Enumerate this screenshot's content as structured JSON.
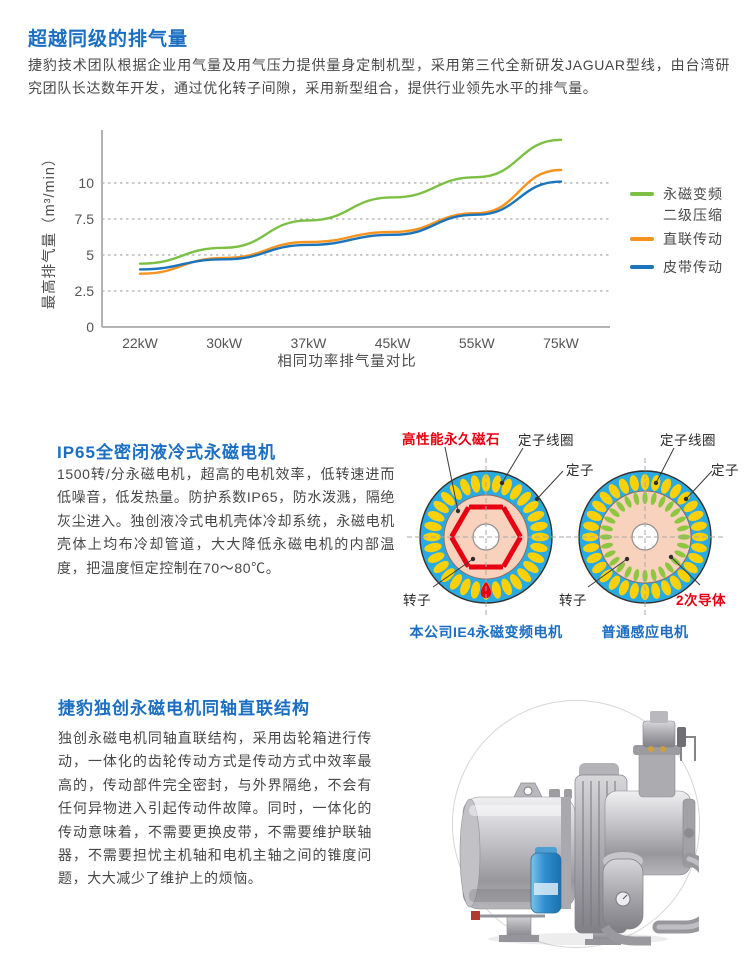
{
  "section1": {
    "title": "超越同级的排气量",
    "body": "捷豹技术团队根据企业用气量及用气压力提供量身定制机型，采用第三代全新研发JAGUAR型线，由台湾研究团队长达数年开发，通过优化转子间隙，采用新型组合，提供行业领先水平的排气量。"
  },
  "chart_data": {
    "type": "line",
    "categories": [
      "22kW",
      "30kW",
      "37kW",
      "45kW",
      "55kW",
      "75kW"
    ],
    "series": [
      {
        "name": "永磁变频二级压缩",
        "legend_lines": [
          "永磁变频",
          "二级压缩"
        ],
        "color": "#7bc043",
        "values": [
          4.4,
          5.5,
          7.4,
          9.0,
          10.4,
          13.0
        ]
      },
      {
        "name": "直联传动",
        "legend_lines": [
          "直联传动"
        ],
        "color": "#f6921e",
        "values": [
          3.7,
          4.8,
          5.9,
          6.6,
          7.9,
          10.9
        ]
      },
      {
        "name": "皮带传动",
        "legend_lines": [
          "皮带传动"
        ],
        "color": "#1b75bc",
        "values": [
          4.0,
          4.7,
          5.7,
          6.4,
          7.8,
          10.1
        ]
      }
    ],
    "ylabel": "最高排气量（m³/min）",
    "xlabel": "相同功率排气量对比",
    "y_ticks": [
      "10",
      "7.5",
      "5",
      "2.5",
      "0"
    ],
    "ylim": [
      0,
      13.5
    ],
    "grid": "horizontal-dotted",
    "legend_position": "right"
  },
  "section2": {
    "title": "IP65全密闭液冷式永磁电机",
    "body": "1500转/分永磁电机，超高的电机效率，低转速进而低噪音，低发热量。防护系数IP65，防水泼溅，隔绝灰尘进入。独创液冷式电机壳体冷却系统，永磁电机壳体上均布冷却管道，大大降低永磁电机的内部温度，把温度恒定控制在70～80℃。",
    "diagram": {
      "left": {
        "caption": "本公司IE4永磁变频电机",
        "labels": {
          "magnet": "高性能永久磁石",
          "stator_coil": "定子线圈",
          "stator": "定子",
          "rotor": "转子"
        }
      },
      "right": {
        "caption": "普通感应电机",
        "labels": {
          "stator_coil": "定子线圈",
          "stator": "定子",
          "rotor": "转子",
          "conductor": "2次导体"
        }
      }
    }
  },
  "section3": {
    "title": "捷豹独创永磁电机同轴直联结构",
    "body": "独创永磁电机同轴直联结构，采用齿轮箱进行传动，一体化的齿轮传动方式是传动方式中效率最高的，传动部件完全密封，与外界隔绝，不会有任何异物进入引起传动件故障。同时，一体化的传动意味着，不需要更换皮带，不需要维护联轴器，不需要担忧主机轴和电机主轴之间的锥度问题，大大减少了维护上的烦恼。"
  },
  "colors": {
    "heading_blue": "#1b6ec2",
    "label_red": "#e60012",
    "stator_blue": "#29abe2",
    "slot_yellow": "#ffd105",
    "rotor_pink": "#f9d2bd",
    "conductor_green": "#8dc63f"
  }
}
